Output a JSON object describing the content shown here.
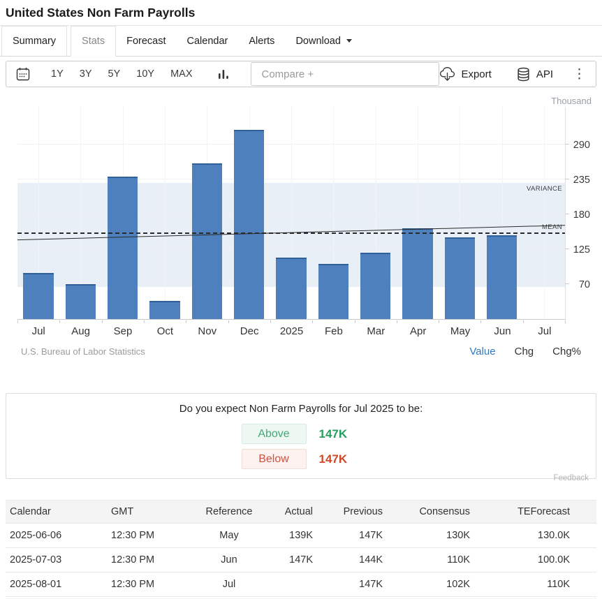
{
  "header": {
    "title": "United States Non Farm Payrolls"
  },
  "tabs": {
    "summary": "Summary",
    "stats": "Stats",
    "forecast": "Forecast",
    "calendar": "Calendar",
    "alerts": "Alerts",
    "download": "Download"
  },
  "toolbar": {
    "ranges": [
      "1Y",
      "3Y",
      "5Y",
      "10Y",
      "MAX"
    ],
    "compare_placeholder": "Compare +",
    "export_label": "Export",
    "api_label": "API"
  },
  "chart_data": {
    "type": "bar",
    "unit_label": "Thousand",
    "categories": [
      "Jul",
      "Aug",
      "Sep",
      "Oct",
      "Nov",
      "Dec",
      "2025",
      "Feb",
      "Mar",
      "Apr",
      "May",
      "Jun",
      "Jul"
    ],
    "values": [
      88,
      70,
      240,
      44,
      261,
      314,
      112,
      102,
      120,
      158,
      144,
      147,
      null
    ],
    "ylim": [
      15,
      350
    ],
    "yticks": [
      70,
      125,
      180,
      235,
      290
    ],
    "mean_value": 150,
    "trend_start": 140,
    "trend_end": 163,
    "variance_band": [
      66,
      230
    ],
    "variance_label": "VARIANCE",
    "mean_label": "MEAN",
    "bar_color": "#4d80bd",
    "band_color": "#e9eff7",
    "source": "U.S. Bureau of Labor Statistics",
    "legend": [
      "Value",
      "Chg",
      "Chg%"
    ],
    "legend_active": "Value"
  },
  "poll": {
    "question": "Do you expect Non Farm Payrolls for Jul 2025 to be:",
    "options": [
      {
        "label": "Above",
        "value": "147K"
      },
      {
        "label": "Below",
        "value": "147K"
      }
    ],
    "feedback": "Feedback"
  },
  "table": {
    "headers": [
      "Calendar",
      "GMT",
      "Reference",
      "Actual",
      "Previous",
      "Consensus",
      "TEForecast"
    ],
    "rows": [
      [
        "2025-06-06",
        "12:30 PM",
        "May",
        "139K",
        "147K",
        "130K",
        "130.0K"
      ],
      [
        "2025-07-03",
        "12:30 PM",
        "Jun",
        "147K",
        "144K",
        "110K",
        "100.0K"
      ],
      [
        "2025-08-01",
        "12:30 PM",
        "Jul",
        "",
        "147K",
        "102K",
        "110K"
      ]
    ]
  }
}
